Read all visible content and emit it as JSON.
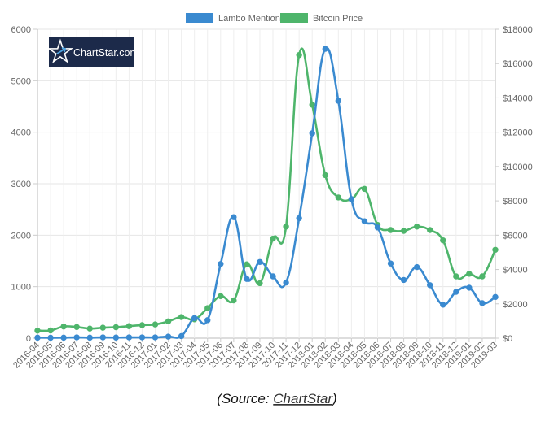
{
  "chart_data": {
    "type": "line",
    "categories": [
      "2016-04",
      "2016-05",
      "2016-06",
      "2016-07",
      "2016-08",
      "2016-09",
      "2016-10",
      "2016-11",
      "2016-12",
      "2017-01",
      "2017-02",
      "2017-03",
      "2017-04",
      "2017-05",
      "2017-06",
      "2017-07",
      "2017-08",
      "2017-09",
      "2017-10",
      "2017-11",
      "2017-12",
      "2018-01",
      "2018-02",
      "2018-03",
      "2018-04",
      "2018-05",
      "2018-06",
      "2018-07",
      "2018-08",
      "2018-09",
      "2018-10",
      "2018-11",
      "2018-12",
      "2019-01",
      "2019-02",
      "2019-03"
    ],
    "series": [
      {
        "name": "Lambo Mentions",
        "axis": "left",
        "color": "#3a8ad0",
        "values": [
          10,
          8,
          10,
          15,
          10,
          15,
          12,
          15,
          15,
          15,
          30,
          40,
          390,
          350,
          1440,
          2350,
          1150,
          1480,
          1200,
          1080,
          2330,
          3980,
          5620,
          4610,
          2700,
          2270,
          2150,
          1450,
          1130,
          1380,
          1030,
          650,
          900,
          980,
          680,
          800
        ]
      },
      {
        "name": "Bitcoin Price",
        "axis": "right",
        "color": "#4eb56b",
        "values": [
          440,
          450,
          680,
          650,
          560,
          610,
          640,
          700,
          760,
          800,
          980,
          1230,
          1100,
          1750,
          2450,
          2200,
          4300,
          3200,
          5800,
          6500,
          16500,
          13600,
          9500,
          8200,
          8100,
          8700,
          6600,
          6300,
          6250,
          6500,
          6300,
          5700,
          3600,
          3750,
          3600,
          5150
        ]
      }
    ],
    "y_left": {
      "min": 0,
      "max": 6000,
      "ticks": [
        "0",
        "1000",
        "2000",
        "3000",
        "4000",
        "5000",
        "6000"
      ]
    },
    "y_right": {
      "min": 0,
      "max": 18000,
      "ticks": [
        "$0",
        "$2000",
        "$4000",
        "$6000",
        "$8000",
        "$10000",
        "$12000",
        "$14000",
        "$16000",
        "$18000"
      ]
    },
    "grid": true,
    "legend_position": "top-center"
  },
  "logo": {
    "text": "ChartStar.com"
  },
  "caption": {
    "prefix": "(Source: ",
    "link": "ChartStar",
    "suffix": ")"
  }
}
